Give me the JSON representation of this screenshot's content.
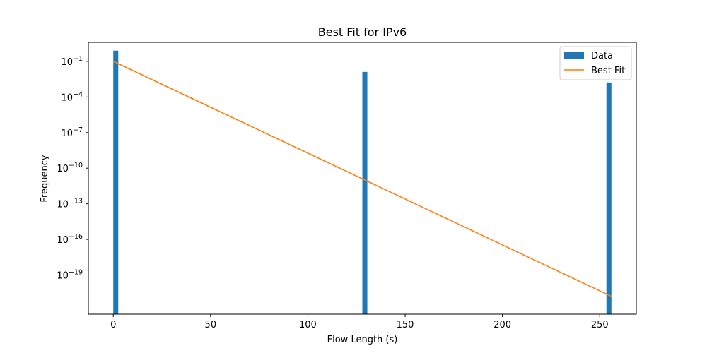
{
  "chart_data": {
    "type": "bar",
    "title": "Best Fit for IPv6",
    "xlabel": "Flow Length (s)",
    "ylabel": "Frequency",
    "xlim": [
      -12.8,
      268.8
    ],
    "ylim_log10": [
      -22.3,
      0.6
    ],
    "yscale": "log",
    "x_ticks": [
      0,
      50,
      100,
      150,
      200,
      250
    ],
    "y_ticks_exponents": [
      -1,
      -4,
      -7,
      -10,
      -13,
      -16,
      -19
    ],
    "bar_width": 2.56,
    "series": [
      {
        "name": "Data",
        "kind": "bar",
        "color": "#1f77b4",
        "x": [
          1.28,
          129.28,
          254.72
        ],
        "y": [
          0.8,
          0.0129,
          0.00166
        ]
      },
      {
        "name": "Best Fit",
        "kind": "line",
        "color": "#ff7f0e",
        "x": [
          0,
          256
        ],
        "y": [
          0.1,
          1.6e-21
        ]
      }
    ],
    "legend": {
      "position": "top-right",
      "entries": [
        "Data",
        "Best Fit"
      ]
    },
    "grid": false
  }
}
